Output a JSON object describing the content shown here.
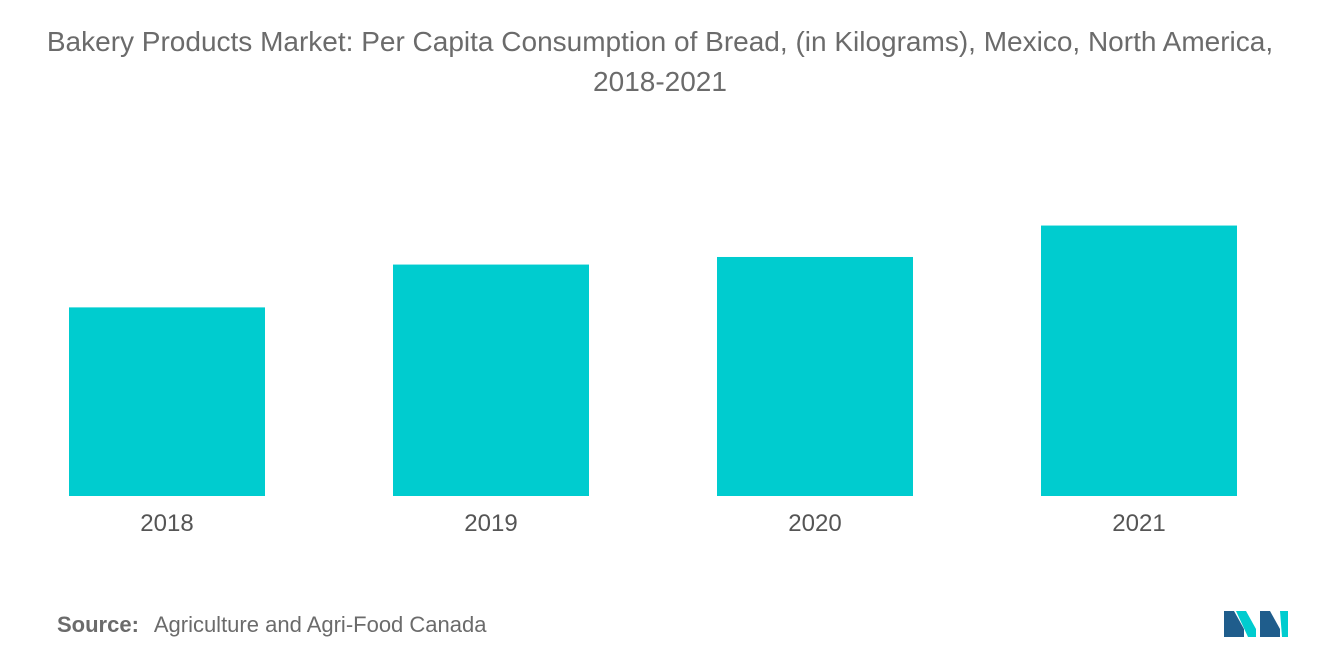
{
  "chart_data": {
    "type": "bar",
    "title": "Bakery Products Market: Per Capita Consumption of Bread, (in Kilograms), Mexico, North America, 2018-2021",
    "categories": [
      "2018",
      "2019",
      "2020",
      "2021"
    ],
    "values": [
      34.8,
      42.7,
      44.1,
      49.9
    ],
    "xlabel": "",
    "ylabel": "",
    "ylim": [
      0,
      50
    ],
    "grid": false,
    "legend": "none",
    "bar_color": "#00cccf"
  },
  "source": {
    "label": "Source:",
    "text": "Agriculture and Agri-Food Canada"
  },
  "brand": {
    "logo_icon": "mordor-intelligence-logo-icon",
    "logo_color_dark": "#1f5d8c",
    "logo_color_light": "#00cccf"
  }
}
